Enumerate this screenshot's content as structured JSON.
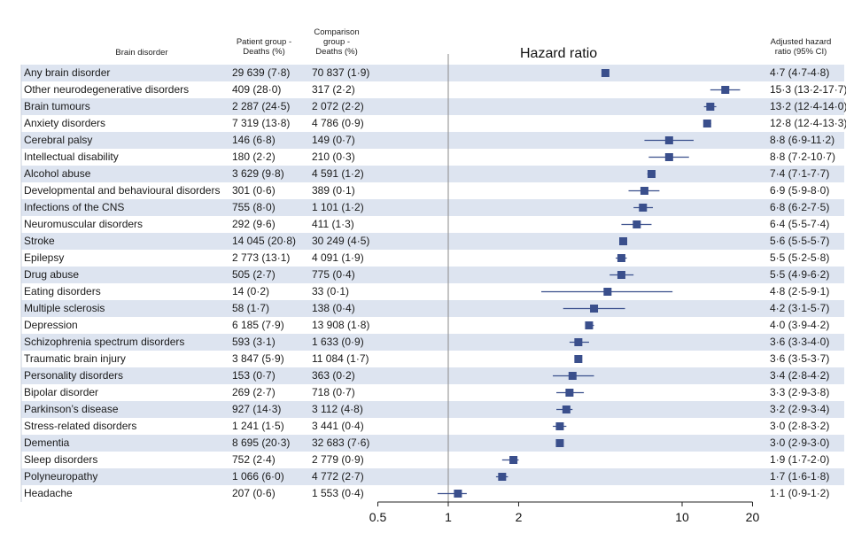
{
  "headers": {
    "disorder": "Brain disorder",
    "patient": [
      "Patient group -",
      "Deaths (%)"
    ],
    "comparison": [
      "Comparison",
      "group -",
      "Deaths (%)"
    ],
    "plot_title": "Hazard ratio",
    "adjusted": [
      "Adjusted hazard",
      "ratio (95% CI)"
    ]
  },
  "rows": [
    {
      "disorder": "Any brain disorder",
      "patient": "29 639 (7·8)",
      "comparison": "70 837 (1·9)",
      "hr_text": "4·7 (4·7-4·8)"
    },
    {
      "disorder": "Other neurodegenerative disorders",
      "patient": "409 (28·0)",
      "comparison": "317 (2·2)",
      "hr_text": "15·3 (13·2-17·7)"
    },
    {
      "disorder": "Brain tumours",
      "patient": "2 287 (24·5)",
      "comparison": "2 072 (2·2)",
      "hr_text": "13·2 (12·4-14·0)"
    },
    {
      "disorder": "Anxiety disorders",
      "patient": "7 319 (13·8)",
      "comparison": "4 786 (0·9)",
      "hr_text": "12·8 (12·4-13·3)"
    },
    {
      "disorder": "Cerebral palsy",
      "patient": "146 (6·8)",
      "comparison": "149 (0·7)",
      "hr_text": "8·8 (6·9-11·2)"
    },
    {
      "disorder": "Intellectual disability",
      "patient": "180 (2·2)",
      "comparison": "210 (0·3)",
      "hr_text": "8·8 (7·2-10·7)"
    },
    {
      "disorder": "Alcohol abuse",
      "patient": "3 629 (9·8)",
      "comparison": "4 591 (1·2)",
      "hr_text": "7·4 (7·1-7·7)"
    },
    {
      "disorder": "Developmental and behavioural disorders",
      "patient": "301 (0·6)",
      "comparison": "389 (0·1)",
      "hr_text": "6·9 (5·9-8·0)"
    },
    {
      "disorder": "Infections of the CNS",
      "patient": "755 (8·0)",
      "comparison": "1 101 (1·2)",
      "hr_text": "6·8 (6·2-7·5)"
    },
    {
      "disorder": "Neuromuscular disorders",
      "patient": "292 (9·6)",
      "comparison": "411 (1·3)",
      "hr_text": "6·4 (5·5-7·4)"
    },
    {
      "disorder": "Stroke",
      "patient": "14 045 (20·8)",
      "comparison": "30 249 (4·5)",
      "hr_text": "5·6 (5·5-5·7)"
    },
    {
      "disorder": "Epilepsy",
      "patient": "2 773 (13·1)",
      "comparison": "4 091 (1·9)",
      "hr_text": "5·5 (5·2-5·8)"
    },
    {
      "disorder": "Drug abuse",
      "patient": "505 (2·7)",
      "comparison": "775 (0·4)",
      "hr_text": "5·5 (4·9-6·2)"
    },
    {
      "disorder": "Eating disorders",
      "patient": "14 (0·2)",
      "comparison": "33 (0·1)",
      "hr_text": "4·8 (2·5-9·1)"
    },
    {
      "disorder": "Multiple sclerosis",
      "patient": "58 (1·7)",
      "comparison": "138 (0·4)",
      "hr_text": "4·2 (3·1-5·7)"
    },
    {
      "disorder": "Depression",
      "patient": "6 185 (7·9)",
      "comparison": "13 908 (1·8)",
      "hr_text": "4·0 (3·9-4·2)"
    },
    {
      "disorder": "Schizophrenia spectrum disorders",
      "patient": "593 (3·1)",
      "comparison": "1 633 (0·9)",
      "hr_text": "3·6 (3·3-4·0)"
    },
    {
      "disorder": "Traumatic brain injury",
      "patient": "3 847 (5·9)",
      "comparison": "11 084 (1·7)",
      "hr_text": "3·6 (3·5-3·7)"
    },
    {
      "disorder": "Personality disorders",
      "patient": "153 (0·7)",
      "comparison": "363 (0·2)",
      "hr_text": "3·4 (2·8-4·2)"
    },
    {
      "disorder": "Bipolar disorder",
      "patient": "269 (2·7)",
      "comparison": "718 (0·7)",
      "hr_text": "3·3 (2·9-3·8)"
    },
    {
      "disorder": "Parkinson’s disease",
      "patient": "927 (14·3)",
      "comparison": "3 112 (4·8)",
      "hr_text": "3·2 (2·9-3·4)"
    },
    {
      "disorder": "Stress-related disorders",
      "patient": "1 241 (1·5)",
      "comparison": "3 441 (0·4)",
      "hr_text": "3·0 (2·8-3·2)"
    },
    {
      "disorder": "Dementia",
      "patient": "8 695 (20·3)",
      "comparison": "32 683 (7·6)",
      "hr_text": "3·0 (2·9-3·0)"
    },
    {
      "disorder": "Sleep disorders",
      "patient": "752 (2·4)",
      "comparison": "2 779 (0·9)",
      "hr_text": "1·9 (1·7-2·0)"
    },
    {
      "disorder": "Polyneuropathy",
      "patient": "1 066 (6·0)",
      "comparison": "4 772 (2·7)",
      "hr_text": "1·7 (1·6-1·8)"
    },
    {
      "disorder": "Headache",
      "patient": "207 (0·6)",
      "comparison": "1 553 (0·4)",
      "hr_text": "1·1 (0·9-1·2)"
    }
  ],
  "chart_data": {
    "type": "scatter",
    "title": "Hazard ratio",
    "x_scale": "log",
    "xlim": [
      0.5,
      20
    ],
    "x_ticks": [
      0.5,
      1,
      2,
      10,
      20
    ],
    "x_tick_labels": [
      "0.5",
      "1",
      "2",
      "10",
      "20"
    ],
    "reference_line": 1,
    "marker_color": "#3a4f8c",
    "band_color": "#dde4f0",
    "points": [
      {
        "label": "Any brain disorder",
        "hr": 4.7,
        "lo": 4.7,
        "hi": 4.8
      },
      {
        "label": "Other neurodegenerative disorders",
        "hr": 15.3,
        "lo": 13.2,
        "hi": 17.7
      },
      {
        "label": "Brain tumours",
        "hr": 13.2,
        "lo": 12.4,
        "hi": 14.0
      },
      {
        "label": "Anxiety disorders",
        "hr": 12.8,
        "lo": 12.4,
        "hi": 13.3
      },
      {
        "label": "Cerebral palsy",
        "hr": 8.8,
        "lo": 6.9,
        "hi": 11.2
      },
      {
        "label": "Intellectual disability",
        "hr": 8.8,
        "lo": 7.2,
        "hi": 10.7
      },
      {
        "label": "Alcohol abuse",
        "hr": 7.4,
        "lo": 7.1,
        "hi": 7.7
      },
      {
        "label": "Developmental and behavioural disorders",
        "hr": 6.9,
        "lo": 5.9,
        "hi": 8.0
      },
      {
        "label": "Infections of the CNS",
        "hr": 6.8,
        "lo": 6.2,
        "hi": 7.5
      },
      {
        "label": "Neuromuscular disorders",
        "hr": 6.4,
        "lo": 5.5,
        "hi": 7.4
      },
      {
        "label": "Stroke",
        "hr": 5.6,
        "lo": 5.5,
        "hi": 5.7
      },
      {
        "label": "Epilepsy",
        "hr": 5.5,
        "lo": 5.2,
        "hi": 5.8
      },
      {
        "label": "Drug abuse",
        "hr": 5.5,
        "lo": 4.9,
        "hi": 6.2
      },
      {
        "label": "Eating disorders",
        "hr": 4.8,
        "lo": 2.5,
        "hi": 9.1
      },
      {
        "label": "Multiple sclerosis",
        "hr": 4.2,
        "lo": 3.1,
        "hi": 5.7
      },
      {
        "label": "Depression",
        "hr": 4.0,
        "lo": 3.9,
        "hi": 4.2
      },
      {
        "label": "Schizophrenia spectrum disorders",
        "hr": 3.6,
        "lo": 3.3,
        "hi": 4.0
      },
      {
        "label": "Traumatic brain injury",
        "hr": 3.6,
        "lo": 3.5,
        "hi": 3.7
      },
      {
        "label": "Personality disorders",
        "hr": 3.4,
        "lo": 2.8,
        "hi": 4.2
      },
      {
        "label": "Bipolar disorder",
        "hr": 3.3,
        "lo": 2.9,
        "hi": 3.8
      },
      {
        "label": "Parkinson’s disease",
        "hr": 3.2,
        "lo": 2.9,
        "hi": 3.4
      },
      {
        "label": "Stress-related disorders",
        "hr": 3.0,
        "lo": 2.8,
        "hi": 3.2
      },
      {
        "label": "Dementia",
        "hr": 3.0,
        "lo": 2.9,
        "hi": 3.0
      },
      {
        "label": "Sleep disorders",
        "hr": 1.9,
        "lo": 1.7,
        "hi": 2.0
      },
      {
        "label": "Polyneuropathy",
        "hr": 1.7,
        "lo": 1.6,
        "hi": 1.8
      },
      {
        "label": "Headache",
        "hr": 1.1,
        "lo": 0.9,
        "hi": 1.2
      }
    ]
  }
}
